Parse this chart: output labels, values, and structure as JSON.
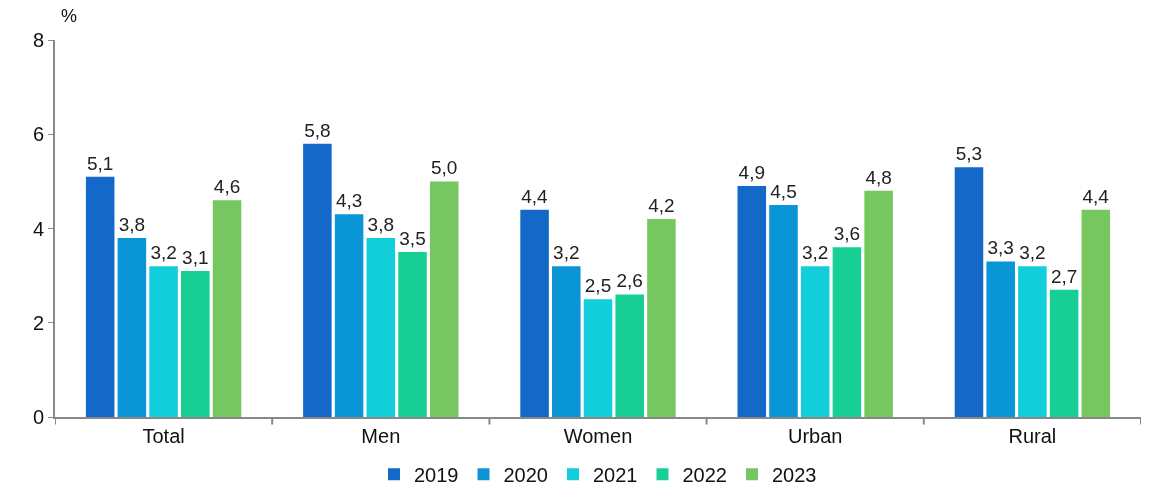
{
  "chart_data": {
    "type": "bar",
    "ylabel": "%",
    "categories": [
      "Total",
      "Men",
      "Women",
      "Urban",
      "Rural"
    ],
    "series": [
      {
        "name": "2019",
        "color": "#1469c8",
        "values": [
          5.1,
          5.8,
          4.4,
          4.9,
          5.3
        ],
        "value_labels": [
          "5,1",
          "5,8",
          "4,4",
          "4,9",
          "5,3"
        ]
      },
      {
        "name": "2020",
        "color": "#0a96d6",
        "values": [
          3.8,
          4.3,
          3.2,
          4.5,
          3.3
        ],
        "value_labels": [
          "3,8",
          "4,3",
          "3,2",
          "4,5",
          "3,3"
        ]
      },
      {
        "name": "2021",
        "color": "#12cedb",
        "values": [
          3.2,
          3.8,
          2.5,
          3.2,
          3.2
        ],
        "value_labels": [
          "3,2",
          "3,8",
          "2,5",
          "3,2",
          "3,2"
        ]
      },
      {
        "name": "2022",
        "color": "#17cf94",
        "values": [
          3.1,
          3.5,
          2.6,
          3.6,
          2.7
        ],
        "value_labels": [
          "3,1",
          "3,5",
          "2,6",
          "3,6",
          "2,7"
        ]
      },
      {
        "name": "2023",
        "color": "#77c760",
        "values": [
          4.6,
          5.0,
          4.2,
          4.8,
          4.4
        ],
        "value_labels": [
          "4,6",
          "5,0",
          "4,2",
          "4,8",
          "4,4"
        ]
      }
    ],
    "ylim": [
      0,
      8
    ],
    "yticks": [
      0,
      2,
      4,
      6,
      8
    ],
    "legend": "bottom"
  }
}
